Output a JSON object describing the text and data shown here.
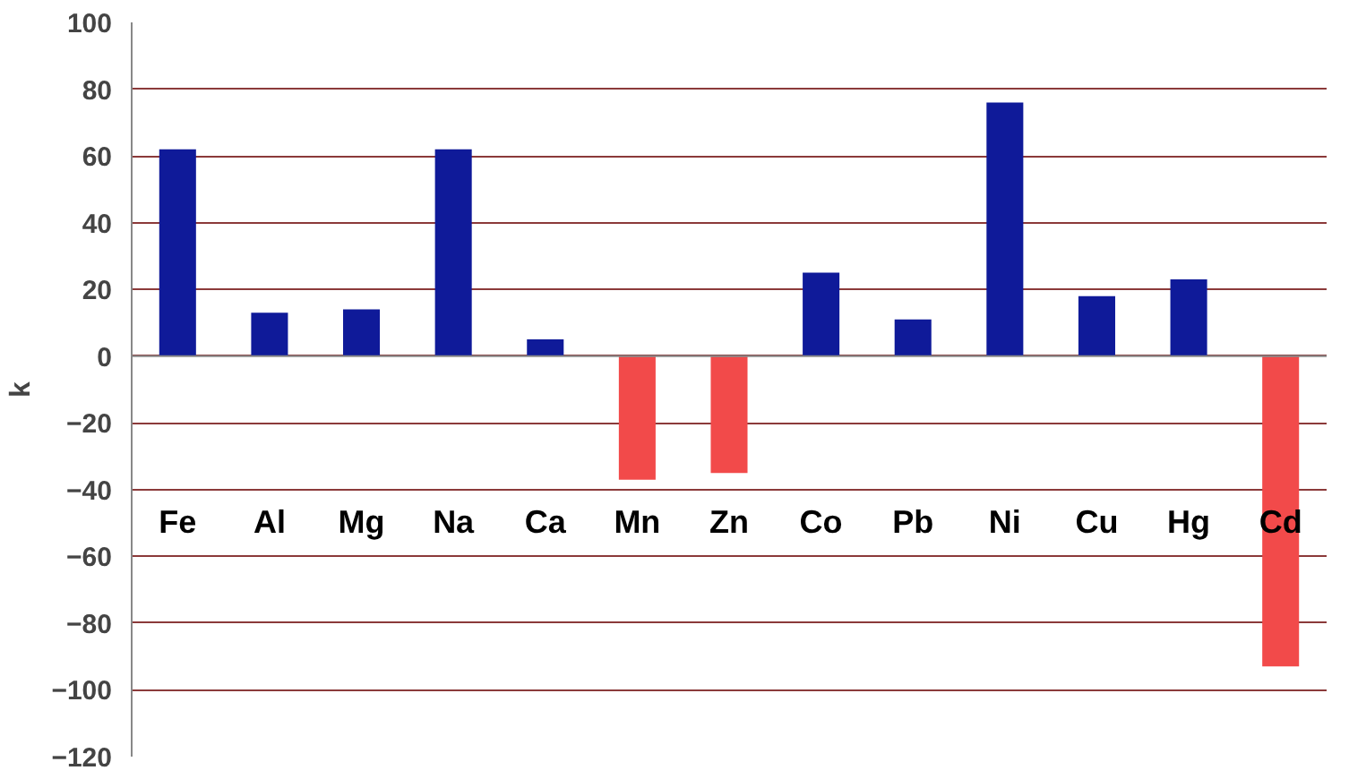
{
  "chart_data": {
    "type": "bar",
    "ylabel": "k",
    "categories": [
      "Fe",
      "Al",
      "Mg",
      "Na",
      "Ca",
      "Mn",
      "Zn",
      "Co",
      "Pb",
      "Ni",
      "Cu",
      "Hg",
      "Cd"
    ],
    "values": [
      62,
      13,
      14,
      62,
      5,
      -37,
      -35,
      25,
      11,
      76,
      18,
      23,
      -93
    ],
    "colors": [
      "#0f1a99",
      "#0f1a99",
      "#0f1a99",
      "#0f1a99",
      "#0f1a99",
      "#f24a4a",
      "#f24a4a",
      "#0f1a99",
      "#0f1a99",
      "#0f1a99",
      "#0f1a99",
      "#0f1a99",
      "#f24a4a"
    ],
    "ylim": [
      -120,
      100
    ],
    "yticks": [
      -120,
      -100,
      -80,
      -60,
      -40,
      -20,
      0,
      20,
      40,
      60,
      80,
      100
    ],
    "grid": "y"
  }
}
